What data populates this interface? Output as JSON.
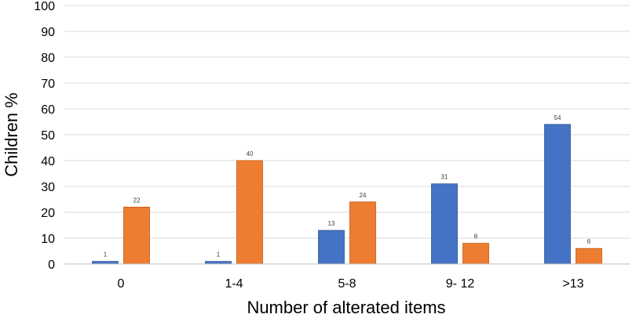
{
  "chart_data": {
    "type": "bar",
    "title": "",
    "xlabel": "Number of alterated items",
    "ylabel": "Children %",
    "ylim": [
      0,
      100
    ],
    "ytick_step": 10,
    "grid": true,
    "legend": "none",
    "categories": [
      "0",
      "1-4",
      "5-8",
      "9- 12",
      ">13"
    ],
    "series": [
      {
        "color": "#4472c4",
        "values": [
          1,
          1,
          13,
          31,
          54
        ]
      },
      {
        "color": "#ed7d31",
        "values": [
          22,
          40,
          24,
          8,
          6
        ]
      }
    ]
  }
}
